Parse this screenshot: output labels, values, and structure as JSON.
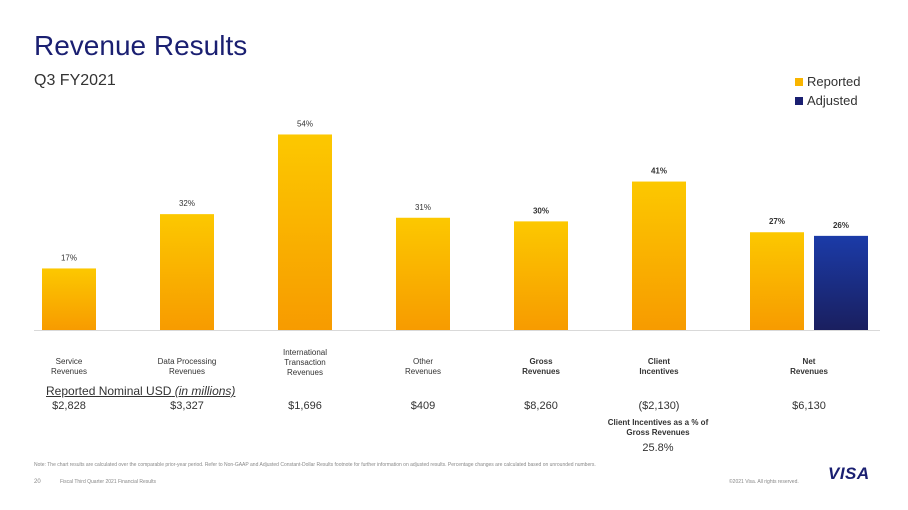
{
  "header": {
    "title": "Revenue Results",
    "subtitle": "Q3 FY2021"
  },
  "legend": [
    {
      "label": "Reported",
      "color": "#f9b500"
    },
    {
      "label": "Adjusted",
      "color": "#1a1f71"
    }
  ],
  "chart_data": {
    "type": "bar",
    "title": "",
    "xlabel": "",
    "ylabel": "",
    "categories": [
      "Service\nRevenues",
      "Data Processing\nRevenues",
      "International\nTransaction\nRevenues",
      "Other\nRevenues",
      "Gross\nRevenues",
      "Client\nIncentives",
      "Net\nRevenues"
    ],
    "series": [
      {
        "name": "Reported",
        "values": [
          17,
          32,
          54,
          31,
          30,
          41,
          27
        ],
        "labels": [
          "17%",
          "32%",
          "54%",
          "31%",
          "30%",
          "41%",
          "27%"
        ]
      },
      {
        "name": "Adjusted",
        "values": [
          null,
          null,
          null,
          null,
          null,
          null,
          26
        ],
        "labels": [
          "",
          "",
          "",
          "",
          "",
          "",
          "26%"
        ]
      }
    ],
    "bold_categories": [
      4,
      5,
      6
    ],
    "ylim": [
      0,
      58
    ],
    "grid": false,
    "legend": "top-right"
  },
  "nominal": {
    "title": "Reported Nominal USD",
    "title_suffix": "(in millions)",
    "values": [
      "$2,828",
      "$3,327",
      "$1,696",
      "$409",
      "$8,260",
      "($2,130)",
      "$6,130"
    ]
  },
  "client_incentives_pct": {
    "label": "Client Incentives as a % of\nGross Revenues",
    "value": "25.8%"
  },
  "footer": {
    "note": "Note: The chart results are calculated over the comparable prior-year period. Refer to Non-GAAP and Adjusted Constant-Dollar Results footnote for further information on adjusted results. Percentage changes are calculated based on unrounded numbers.",
    "page": "20",
    "doc_title": "Fiscal Third Quarter 2021 Financial Results",
    "copyright": "©2021 Visa. All rights reserved.",
    "logo": "VISA"
  }
}
